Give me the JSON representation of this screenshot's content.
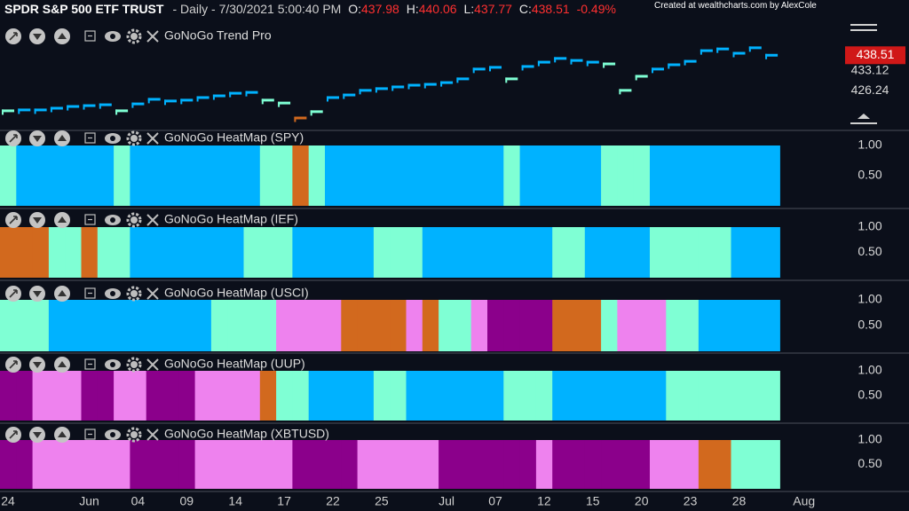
{
  "header": {
    "symbol": "SPDR S&P 500 ETF TRUST",
    "period": "- Daily - 7/30/2021 5:00:40 PM",
    "open_label": "O:",
    "open": 437.98,
    "high_label": "H:",
    "high": 440.06,
    "low_label": "L:",
    "low": 437.77,
    "close_label": "C:",
    "close": 438.51,
    "change": "-0.49%",
    "credit": "Created at wealthcharts.com by AlexCole"
  },
  "chart_data": [
    {
      "type": "step",
      "title": "GoNoGo Trend Pro",
      "categories": [
        "24",
        null,
        null,
        null,
        null,
        "Jun",
        null,
        null,
        "04",
        null,
        null,
        "09",
        null,
        null,
        "14",
        null,
        null,
        "17",
        null,
        null,
        "22",
        null,
        null,
        "25",
        null,
        null,
        null,
        "Jul",
        null,
        null,
        "07",
        null,
        null,
        "12",
        null,
        null,
        "15",
        null,
        null,
        "20",
        null,
        null,
        "23",
        null,
        null,
        "28",
        null,
        null
      ],
      "x_next_label": "Aug",
      "values": [
        419.2,
        419.5,
        419.5,
        420.1,
        420.7,
        421.0,
        421.3,
        419.2,
        421.6,
        423.2,
        422.6,
        422.9,
        423.8,
        424.4,
        425.3,
        425.6,
        422.9,
        421.9,
        416.7,
        418.9,
        423.8,
        424.7,
        426.3,
        426.9,
        427.5,
        428.1,
        428.4,
        429.0,
        430.3,
        433.7,
        434.3,
        430.3,
        434.6,
        436.1,
        437.4,
        436.7,
        436.1,
        435.5,
        426.3,
        431.2,
        433.7,
        435.2,
        436.4,
        440.1,
        440.7,
        439.2,
        441.1,
        438.51
      ],
      "colors": [
        "#7fffd4",
        "#00b2ff",
        "#00b2ff",
        "#00b2ff",
        "#00b2ff",
        "#00b2ff",
        "#00b2ff",
        "#7fffd4",
        "#00b2ff",
        "#00b2ff",
        "#00b2ff",
        "#00b2ff",
        "#00b2ff",
        "#00b2ff",
        "#00b2ff",
        "#00b2ff",
        "#7fffd4",
        "#7fffd4",
        "#d2691e",
        "#7fffd4",
        "#00b2ff",
        "#00b2ff",
        "#00b2ff",
        "#00b2ff",
        "#00b2ff",
        "#00b2ff",
        "#00b2ff",
        "#00b2ff",
        "#00b2ff",
        "#00b2ff",
        "#00b2ff",
        "#7fffd4",
        "#00b2ff",
        "#00b2ff",
        "#00b2ff",
        "#00b2ff",
        "#00b2ff",
        "#7fffd4",
        "#7fffd4",
        "#7fffd4",
        "#00b2ff",
        "#00b2ff",
        "#00b2ff",
        "#00b2ff",
        "#00b2ff",
        "#00b2ff",
        "#00b2ff",
        "#00b2ff"
      ],
      "last_color": "#d01818",
      "ylim": [
        413,
        450
      ],
      "yticks": [
        426.24,
        433.12
      ]
    },
    {
      "type": "heatmap",
      "title": "GoNoGo HeatMap (SPY)",
      "ylim": [
        0,
        1
      ],
      "yticks": [
        {
          "value": 1,
          "label": "1.00"
        },
        {
          "value": 0.5,
          "label": "0.50"
        }
      ],
      "values": [
        1,
        1,
        1,
        1,
        1,
        1,
        1,
        1,
        1,
        1,
        1,
        1,
        1,
        1,
        1,
        1,
        1,
        1,
        1,
        1,
        1,
        1,
        1,
        1,
        1,
        1,
        1,
        1,
        1,
        1,
        1,
        1,
        1,
        1,
        1,
        1,
        1,
        1,
        1,
        1,
        1,
        1,
        1,
        1,
        1,
        1,
        1,
        1
      ],
      "colors": [
        "#7fffd4",
        "#00b2ff",
        "#00b2ff",
        "#00b2ff",
        "#00b2ff",
        "#00b2ff",
        "#00b2ff",
        "#7fffd4",
        "#00b2ff",
        "#00b2ff",
        "#00b2ff",
        "#00b2ff",
        "#00b2ff",
        "#00b2ff",
        "#00b2ff",
        "#00b2ff",
        "#7fffd4",
        "#7fffd4",
        "#d2691e",
        "#7fffd4",
        "#00b2ff",
        "#00b2ff",
        "#00b2ff",
        "#00b2ff",
        "#00b2ff",
        "#00b2ff",
        "#00b2ff",
        "#00b2ff",
        "#00b2ff",
        "#00b2ff",
        "#00b2ff",
        "#7fffd4",
        "#00b2ff",
        "#00b2ff",
        "#00b2ff",
        "#00b2ff",
        "#00b2ff",
        "#7fffd4",
        "#7fffd4",
        "#7fffd4",
        "#00b2ff",
        "#00b2ff",
        "#00b2ff",
        "#00b2ff",
        "#00b2ff",
        "#00b2ff",
        "#00b2ff",
        "#00b2ff"
      ]
    },
    {
      "type": "heatmap",
      "title": "GoNoGo HeatMap (IEF)",
      "ylim": [
        0,
        1
      ],
      "yticks": [
        {
          "value": 1,
          "label": "1.00"
        },
        {
          "value": 0.5,
          "label": "0.50"
        }
      ],
      "values": [
        1,
        1,
        1,
        1,
        1,
        1,
        1,
        1,
        1,
        1,
        1,
        1,
        1,
        1,
        1,
        1,
        1,
        1,
        1,
        1,
        1,
        1,
        1,
        1,
        1,
        1,
        1,
        1,
        1,
        1,
        1,
        1,
        1,
        1,
        1,
        1,
        1,
        1,
        1,
        1,
        1,
        1,
        1,
        1,
        1,
        1,
        1,
        1
      ],
      "colors": [
        "#d2691e",
        "#d2691e",
        "#d2691e",
        "#7fffd4",
        "#7fffd4",
        "#d2691e",
        "#7fffd4",
        "#7fffd4",
        "#00b2ff",
        "#00b2ff",
        "#00b2ff",
        "#00b2ff",
        "#00b2ff",
        "#00b2ff",
        "#00b2ff",
        "#7fffd4",
        "#7fffd4",
        "#7fffd4",
        "#00b2ff",
        "#00b2ff",
        "#00b2ff",
        "#00b2ff",
        "#00b2ff",
        "#7fffd4",
        "#7fffd4",
        "#7fffd4",
        "#00b2ff",
        "#00b2ff",
        "#00b2ff",
        "#00b2ff",
        "#00b2ff",
        "#00b2ff",
        "#00b2ff",
        "#00b2ff",
        "#7fffd4",
        "#7fffd4",
        "#00b2ff",
        "#00b2ff",
        "#00b2ff",
        "#00b2ff",
        "#7fffd4",
        "#7fffd4",
        "#7fffd4",
        "#7fffd4",
        "#7fffd4",
        "#00b2ff",
        "#00b2ff",
        "#00b2ff"
      ]
    },
    {
      "type": "heatmap",
      "title": "GoNoGo HeatMap (USCI)",
      "ylim": [
        0,
        1
      ],
      "yticks": [
        {
          "value": 1,
          "label": "1.00"
        },
        {
          "value": 0.5,
          "label": "0.50"
        }
      ],
      "values": [
        1,
        1,
        1,
        1,
        1,
        1,
        1,
        1,
        1,
        1,
        1,
        1,
        1,
        1,
        1,
        1,
        1,
        1,
        1,
        1,
        1,
        1,
        1,
        1,
        1,
        1,
        1,
        1,
        1,
        1,
        1,
        1,
        1,
        1,
        1,
        1,
        1,
        1,
        1,
        1,
        1,
        1,
        1,
        1,
        1,
        1,
        1,
        1
      ],
      "colors": [
        "#7fffd4",
        "#7fffd4",
        "#7fffd4",
        "#00b2ff",
        "#00b2ff",
        "#00b2ff",
        "#00b2ff",
        "#00b2ff",
        "#00b2ff",
        "#00b2ff",
        "#00b2ff",
        "#00b2ff",
        "#00b2ff",
        "#7fffd4",
        "#7fffd4",
        "#7fffd4",
        "#7fffd4",
        "#ee82ee",
        "#ee82ee",
        "#ee82ee",
        "#ee82ee",
        "#d2691e",
        "#d2691e",
        "#d2691e",
        "#d2691e",
        "#ee82ee",
        "#d2691e",
        "#7fffd4",
        "#7fffd4",
        "#ee82ee",
        "#8b008b",
        "#8b008b",
        "#8b008b",
        "#8b008b",
        "#d2691e",
        "#d2691e",
        "#d2691e",
        "#7fffd4",
        "#ee82ee",
        "#ee82ee",
        "#ee82ee",
        "#7fffd4",
        "#7fffd4",
        "#00b2ff",
        "#00b2ff",
        "#00b2ff",
        "#00b2ff",
        "#00b2ff"
      ]
    },
    {
      "type": "heatmap",
      "title": "GoNoGo HeatMap (UUP)",
      "ylim": [
        0,
        1
      ],
      "yticks": [
        {
          "value": 1,
          "label": "1.00"
        },
        {
          "value": 0.5,
          "label": "0.50"
        }
      ],
      "values": [
        1,
        1,
        1,
        1,
        1,
        1,
        1,
        1,
        1,
        1,
        1,
        1,
        1,
        1,
        1,
        1,
        1,
        1,
        1,
        1,
        1,
        1,
        1,
        1,
        1,
        1,
        1,
        1,
        1,
        1,
        1,
        1,
        1,
        1,
        1,
        1,
        1,
        1,
        1,
        1,
        1,
        1,
        1,
        1,
        1,
        1,
        1,
        1
      ],
      "colors": [
        "#8b008b",
        "#8b008b",
        "#ee82ee",
        "#ee82ee",
        "#ee82ee",
        "#8b008b",
        "#8b008b",
        "#ee82ee",
        "#ee82ee",
        "#8b008b",
        "#8b008b",
        "#8b008b",
        "#ee82ee",
        "#ee82ee",
        "#ee82ee",
        "#ee82ee",
        "#d2691e",
        "#7fffd4",
        "#7fffd4",
        "#00b2ff",
        "#00b2ff",
        "#00b2ff",
        "#00b2ff",
        "#7fffd4",
        "#7fffd4",
        "#00b2ff",
        "#00b2ff",
        "#00b2ff",
        "#00b2ff",
        "#00b2ff",
        "#00b2ff",
        "#7fffd4",
        "#7fffd4",
        "#7fffd4",
        "#00b2ff",
        "#00b2ff",
        "#00b2ff",
        "#00b2ff",
        "#00b2ff",
        "#00b2ff",
        "#00b2ff",
        "#7fffd4",
        "#7fffd4",
        "#7fffd4",
        "#7fffd4",
        "#7fffd4",
        "#7fffd4",
        "#7fffd4"
      ]
    },
    {
      "type": "heatmap",
      "title": "GoNoGo HeatMap (XBTUSD)",
      "ylim": [
        0,
        1
      ],
      "yticks": [
        {
          "value": 1,
          "label": "1.00"
        },
        {
          "value": 0.5,
          "label": "0.50"
        }
      ],
      "values": [
        1,
        1,
        1,
        1,
        1,
        1,
        1,
        1,
        1,
        1,
        1,
        1,
        1,
        1,
        1,
        1,
        1,
        1,
        1,
        1,
        1,
        1,
        1,
        1,
        1,
        1,
        1,
        1,
        1,
        1,
        1,
        1,
        1,
        1,
        1,
        1,
        1,
        1,
        1,
        1,
        1,
        1,
        1,
        1,
        1,
        1,
        1,
        1
      ],
      "colors": [
        "#8b008b",
        "#8b008b",
        "#ee82ee",
        "#ee82ee",
        "#ee82ee",
        "#ee82ee",
        "#ee82ee",
        "#ee82ee",
        "#8b008b",
        "#8b008b",
        "#8b008b",
        "#8b008b",
        "#ee82ee",
        "#ee82ee",
        "#ee82ee",
        "#ee82ee",
        "#ee82ee",
        "#ee82ee",
        "#8b008b",
        "#8b008b",
        "#8b008b",
        "#8b008b",
        "#ee82ee",
        "#ee82ee",
        "#ee82ee",
        "#ee82ee",
        "#ee82ee",
        "#8b008b",
        "#8b008b",
        "#8b008b",
        "#8b008b",
        "#8b008b",
        "#8b008b",
        "#ee82ee",
        "#8b008b",
        "#8b008b",
        "#8b008b",
        "#8b008b",
        "#8b008b",
        "#8b008b",
        "#ee82ee",
        "#ee82ee",
        "#ee82ee",
        "#d2691e",
        "#d2691e",
        "#7fffd4",
        "#7fffd4",
        "#7fffd4"
      ]
    }
  ]
}
